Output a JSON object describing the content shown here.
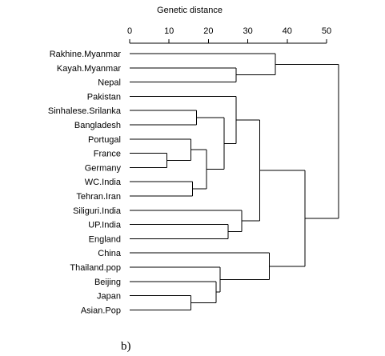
{
  "axis": {
    "title": "Genetic distance",
    "ticks": [
      0,
      10,
      20,
      30,
      40,
      50
    ],
    "range": [
      0,
      53
    ]
  },
  "leaves": [
    "Rakhine.Myanmar",
    "Kayah.Myanmar",
    "Nepal",
    "Pakistan",
    "Sinhalese.Srilanka",
    "Bangladesh",
    "Portugal",
    "France",
    "Germany",
    "WC.India",
    "Tehran.Iran",
    "Siliguri.India",
    "UP.India",
    "England",
    "China",
    "Thailand.pop",
    "Beijing",
    "Japan",
    "Asian.Pop"
  ],
  "merges": [
    {
      "id": "n1",
      "children": [
        "France",
        "Germany"
      ],
      "height": 9.5
    },
    {
      "id": "n2",
      "children": [
        "Portugal",
        "n1"
      ],
      "height": 15.5
    },
    {
      "id": "n3",
      "children": [
        "WC.India",
        "Tehran.Iran"
      ],
      "height": 16
    },
    {
      "id": "n4",
      "children": [
        "n2",
        "n3"
      ],
      "height": 19.5
    },
    {
      "id": "n5",
      "children": [
        "Sinhalese.Srilanka",
        "Bangladesh"
      ],
      "height": 17
    },
    {
      "id": "n6",
      "children": [
        "n5",
        "n4"
      ],
      "height": 24
    },
    {
      "id": "n7",
      "children": [
        "Pakistan",
        "n6"
      ],
      "height": 27
    },
    {
      "id": "n8",
      "children": [
        "UP.India",
        "England"
      ],
      "height": 25
    },
    {
      "id": "n9",
      "children": [
        "Siliguri.India",
        "n8"
      ],
      "height": 28.5
    },
    {
      "id": "n10",
      "children": [
        "n7",
        "n9"
      ],
      "height": 33
    },
    {
      "id": "n11",
      "children": [
        "Japan",
        "Asian.Pop"
      ],
      "height": 15.5
    },
    {
      "id": "n12",
      "children": [
        "Beijing",
        "n11"
      ],
      "height": 22
    },
    {
      "id": "n13",
      "children": [
        "Thailand.pop",
        "n12"
      ],
      "height": 23
    },
    {
      "id": "n14",
      "children": [
        "China",
        "n13"
      ],
      "height": 35.5
    },
    {
      "id": "n15",
      "children": [
        "n10",
        "n14"
      ],
      "height": 44.5
    },
    {
      "id": "n16",
      "children": [
        "Kayah.Myanmar",
        "Nepal"
      ],
      "height": 27
    },
    {
      "id": "n17",
      "children": [
        "Rakhine.Myanmar",
        "n16"
      ],
      "height": 37
    },
    {
      "id": "n18",
      "children": [
        "n17",
        "n15"
      ],
      "height": 53
    }
  ],
  "caption": "b)"
}
